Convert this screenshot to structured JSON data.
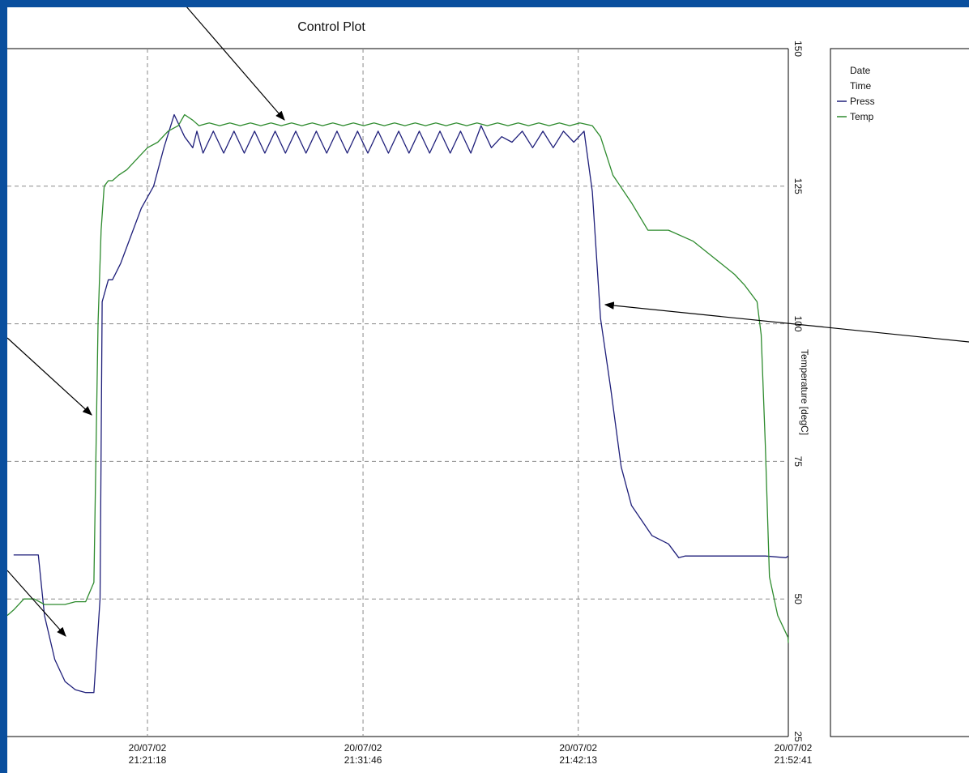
{
  "colors": {
    "background": "#0a4f9e",
    "press": "#1f1f7a",
    "temp": "#2e8b2e"
  },
  "chart_data": {
    "type": "line",
    "title": "Control Plot",
    "ylabel": "Temperature [degC]",
    "ylim": [
      25,
      150
    ],
    "yticks": [
      25,
      50,
      75,
      100,
      125,
      150
    ],
    "grid": true,
    "legend_position": "right panel, top-left",
    "legend": [
      "Date",
      "Time",
      "Press",
      "Temp"
    ],
    "xticks": [
      {
        "date": "20/07/02",
        "time": "21:21:18"
      },
      {
        "date": "20/07/02",
        "time": "21:31:46"
      },
      {
        "date": "20/07/02",
        "time": "21:42:13"
      },
      {
        "date": "20/07/02",
        "time": "21:52:41"
      }
    ],
    "x_unit": "minutes relative to 21:21:18",
    "series": [
      {
        "name": "Press",
        "x": [
          -6.5,
          -5.3,
          -5.0,
          -4.5,
          -4.0,
          -3.5,
          -3.0,
          -2.6,
          -2.3,
          -2.2,
          -1.9,
          -1.7,
          -1.3,
          -0.8,
          -0.3,
          0.3,
          0.8,
          1.3,
          1.8,
          2.2,
          2.4,
          2.7,
          3.2,
          3.7,
          4.2,
          4.7,
          5.2,
          5.7,
          6.2,
          6.7,
          7.2,
          7.7,
          8.2,
          8.7,
          9.2,
          9.7,
          10.2,
          10.7,
          11.2,
          11.7,
          12.2,
          12.7,
          13.2,
          13.7,
          14.2,
          14.7,
          15.2,
          15.7,
          16.2,
          16.7,
          17.2,
          17.7,
          18.2,
          18.7,
          19.2,
          19.7,
          20.2,
          20.7,
          21.2,
          21.6,
          22.0,
          22.5,
          23.0,
          23.5,
          24.5,
          25.3,
          25.8,
          26.1,
          26.3,
          27.5,
          30.0,
          31.0,
          31.4
        ],
        "values": [
          58,
          58,
          47,
          39,
          35,
          33.5,
          33,
          33,
          50,
          104,
          108,
          108,
          111,
          116,
          121,
          125,
          132,
          138,
          134,
          132,
          135,
          131,
          135,
          131,
          135,
          131,
          135,
          131,
          135,
          131,
          135,
          131,
          135,
          131,
          135,
          131,
          135,
          131,
          135,
          131,
          135,
          131,
          135,
          131,
          135,
          131,
          135,
          131,
          136,
          132,
          134,
          133,
          135,
          132,
          135,
          132,
          135,
          133,
          135,
          124,
          101,
          88,
          74,
          67,
          61.5,
          60,
          57.5,
          57.8,
          57.8,
          57.8,
          57.8,
          57.5,
          57.8
        ]
      },
      {
        "name": "Temp",
        "x": [
          -7.0,
          -6.5,
          -6.0,
          -5.5,
          -5.0,
          -4.5,
          -4.0,
          -3.5,
          -3.0,
          -2.6,
          -2.4,
          -2.25,
          -2.1,
          -1.9,
          -1.7,
          -1.4,
          -1.0,
          -0.5,
          0.0,
          0.5,
          1.0,
          1.5,
          1.8,
          2.2,
          2.5,
          3.0,
          3.5,
          4.0,
          4.5,
          5.0,
          5.5,
          6.0,
          6.5,
          7.0,
          7.5,
          8.0,
          8.5,
          9.0,
          9.5,
          10.0,
          10.5,
          11.0,
          11.5,
          12.0,
          12.5,
          13.0,
          13.5,
          14.0,
          14.5,
          15.0,
          15.5,
          16.0,
          16.5,
          17.0,
          17.5,
          18.0,
          18.5,
          19.0,
          19.5,
          20.0,
          20.5,
          21.0,
          21.6,
          22.0,
          22.6,
          23.5,
          24.3,
          25.3,
          26.5,
          27.5,
          28.5,
          29.0,
          29.6,
          29.8,
          30.0,
          30.2,
          30.6,
          31.1,
          31.4
        ],
        "values": [
          47,
          48,
          50,
          50,
          49,
          49,
          49,
          49.5,
          49.5,
          53,
          100,
          117,
          125,
          126,
          126,
          127,
          128,
          130,
          132,
          133,
          135,
          136,
          138,
          137,
          136,
          136.5,
          136,
          136.5,
          136,
          136.5,
          136,
          136.5,
          136,
          136.5,
          136,
          136.5,
          136,
          136.5,
          136,
          136.5,
          136,
          136.5,
          136,
          136.5,
          136,
          136.5,
          136,
          136.5,
          136,
          136.5,
          136,
          136.5,
          136,
          136.5,
          136,
          136.5,
          136,
          136.5,
          136,
          136.5,
          136,
          136.5,
          136,
          134,
          127,
          122,
          117,
          117,
          115,
          112,
          109,
          107,
          104,
          98,
          78,
          54,
          47,
          43,
          42
        ]
      }
    ]
  }
}
